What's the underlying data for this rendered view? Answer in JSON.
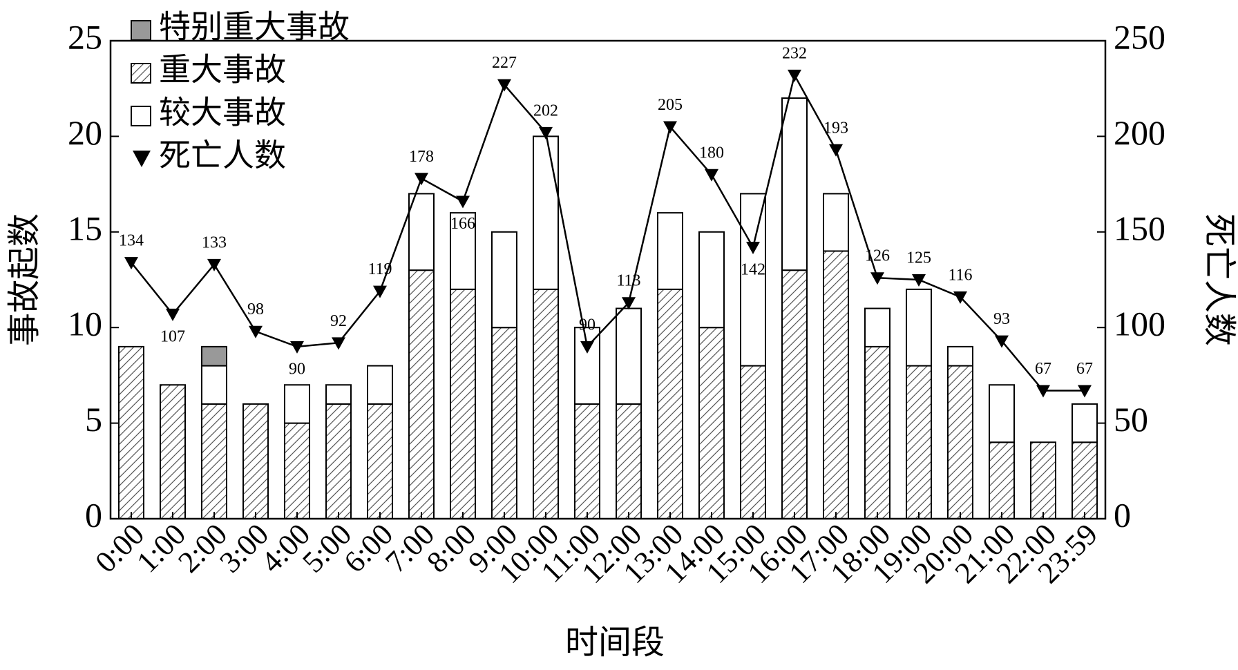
{
  "chart_data": {
    "type": "bar",
    "x_label": "时间段",
    "y_label": "事故起数",
    "y2_label": "死亡人数",
    "categories": [
      "0:00",
      "1:00",
      "2:00",
      "3:00",
      "4:00",
      "5:00",
      "6:00",
      "7:00",
      "8:00",
      "9:00",
      "10:00",
      "11:00",
      "12:00",
      "13:00",
      "14:00",
      "15:00",
      "16:00",
      "17:00",
      "18:00",
      "19:00",
      "20:00",
      "21:00",
      "22:00",
      "23:59"
    ],
    "series": [
      {
        "name": "特别重大事故",
        "type": "bar",
        "color": "#999999",
        "stack_order": 3,
        "values": [
          0,
          0,
          1,
          0,
          0,
          0,
          0,
          0,
          0,
          0,
          0,
          0,
          0,
          0,
          0,
          0,
          0,
          0,
          0,
          0,
          0,
          0,
          0,
          0
        ]
      },
      {
        "name": "重大事故",
        "type": "bar",
        "color": "#ffffff",
        "hatch": true,
        "stack_order": 1,
        "values": [
          9,
          7,
          6,
          6,
          5,
          6,
          6,
          13,
          12,
          10,
          12,
          6,
          6,
          12,
          10,
          8,
          13,
          14,
          9,
          8,
          8,
          4,
          4,
          4
        ]
      },
      {
        "name": "较大事故",
        "type": "bar",
        "color": "#ffffff",
        "stack_order": 2,
        "values": [
          0,
          0,
          2,
          0,
          2,
          1,
          2,
          4,
          4,
          5,
          8,
          4,
          5,
          4,
          5,
          9,
          9,
          3,
          2,
          4,
          1,
          3,
          0,
          2
        ]
      },
      {
        "name": "死亡人数",
        "type": "line",
        "axis": "y2",
        "color": "#000000",
        "marker": "triangle-down",
        "data_labels": true,
        "values": [
          134,
          107,
          133,
          98,
          90,
          92,
          119,
          178,
          166,
          227,
          202,
          90,
          113,
          205,
          180,
          142,
          232,
          193,
          126,
          125,
          116,
          93,
          67,
          67
        ]
      }
    ],
    "ylim": [
      0,
      25
    ],
    "yticks": [
      0,
      5,
      10,
      15,
      20,
      25
    ],
    "y2lim": [
      0,
      250
    ],
    "y2ticks": [
      0,
      50,
      100,
      150,
      200,
      250
    ],
    "legend": "upper left"
  }
}
